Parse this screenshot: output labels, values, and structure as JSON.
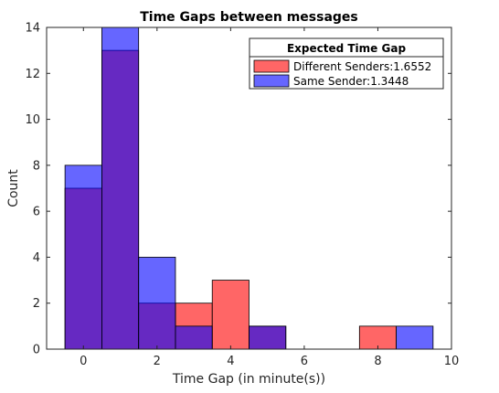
{
  "chart_data": {
    "type": "bar",
    "title": "Time Gaps between messages",
    "xlabel": "Time Gap (in minute(s))",
    "ylabel": "Count",
    "xlim": [
      -1,
      10
    ],
    "ylim": [
      0,
      14
    ],
    "xticks": [
      0,
      2,
      4,
      6,
      8,
      10
    ],
    "yticks": [
      0,
      2,
      4,
      6,
      8,
      10,
      12,
      14
    ],
    "bin_width": 1,
    "grid": false,
    "legend": {
      "title": "Expected Time Gap",
      "placement": "top-right"
    },
    "series": [
      {
        "name": "Different Senders:1.6552",
        "color": "#ff0000",
        "opacity": 0.6,
        "bin_centers": [
          0,
          1,
          2,
          3,
          4,
          5,
          6,
          7,
          8,
          9
        ],
        "values": [
          7,
          13,
          2,
          2,
          3,
          1,
          0,
          0,
          1,
          0
        ]
      },
      {
        "name": "Same Sender:1.3448",
        "color": "#0000ff",
        "opacity": 0.6,
        "bin_centers": [
          0,
          1,
          2,
          3,
          4,
          5,
          6,
          7,
          8,
          9
        ],
        "values": [
          8,
          14,
          4,
          1,
          0,
          1,
          0,
          0,
          0,
          1
        ]
      }
    ]
  }
}
